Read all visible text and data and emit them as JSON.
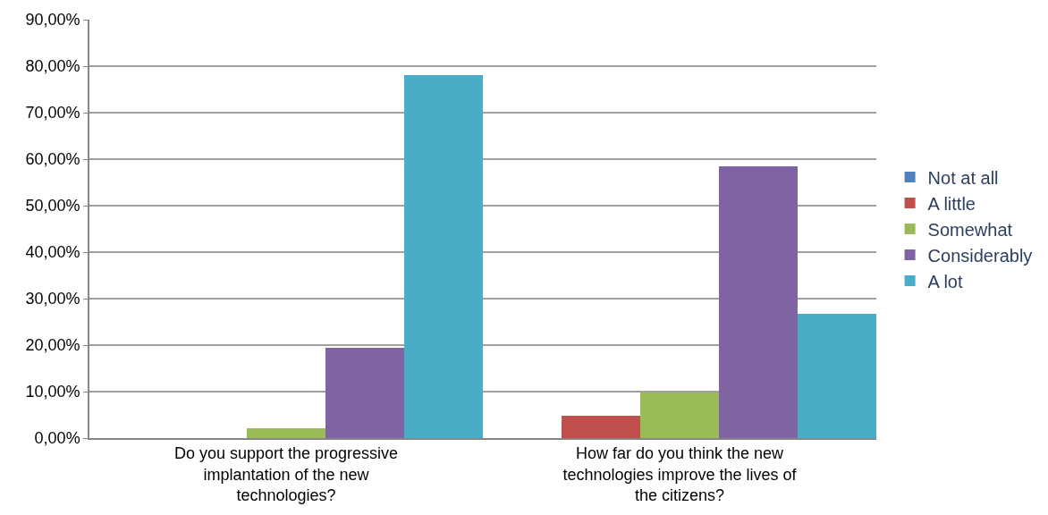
{
  "chart_data": {
    "type": "bar",
    "categories": [
      "Do you support the progressive implantation of the new technologies?",
      "How far do you think the new technologies improve the lives of the citizens?"
    ],
    "series": [
      {
        "name": "Not at all",
        "color": "#4f81bd",
        "values": [
          0,
          0
        ]
      },
      {
        "name": "A little",
        "color": "#c0504d",
        "values": [
          0,
          4.9
        ]
      },
      {
        "name": "Somewhat",
        "color": "#9bbb59",
        "values": [
          2.2,
          9.8
        ]
      },
      {
        "name": "Considerably",
        "color": "#8064a2",
        "values": [
          19.4,
          58.5
        ]
      },
      {
        "name": "A lot",
        "color": "#4bacc6",
        "values": [
          78.0,
          26.7
        ]
      }
    ],
    "ylim": [
      0,
      90
    ],
    "yticks": [
      {
        "value": 0,
        "label": "0,00%"
      },
      {
        "value": 10,
        "label": "10,00%"
      },
      {
        "value": 20,
        "label": "20,00%"
      },
      {
        "value": 30,
        "label": "30,00%"
      },
      {
        "value": 40,
        "label": "40,00%"
      },
      {
        "value": 50,
        "label": "50,00%"
      },
      {
        "value": 60,
        "label": "60,00%"
      },
      {
        "value": 70,
        "label": "70,00%"
      },
      {
        "value": 80,
        "label": "80,00%"
      },
      {
        "value": 90,
        "label": "90,00%"
      }
    ],
    "grid": "y",
    "legend": "right"
  }
}
